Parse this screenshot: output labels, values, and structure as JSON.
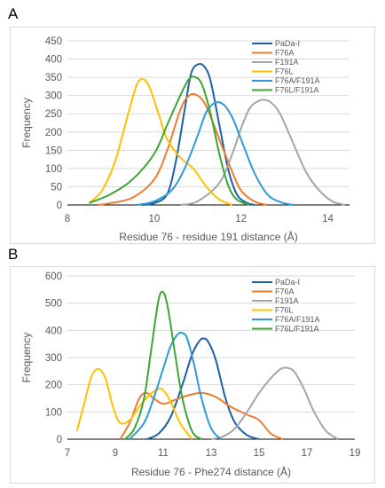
{
  "panels": [
    {
      "letter": "A"
    },
    {
      "letter": "B"
    }
  ],
  "chart_data": [
    {
      "type": "line",
      "title": "",
      "xlabel": "Residue 76 - residue 191 distance (Å)",
      "ylabel": "Frequency",
      "xlim": [
        8,
        14.5
      ],
      "ylim": [
        0,
        450
      ],
      "xticks": [
        8,
        10,
        12,
        14
      ],
      "yticks": [
        0,
        50,
        100,
        150,
        200,
        250,
        300,
        350,
        400,
        450
      ],
      "grid": "horizontal",
      "legend": "top-right",
      "series": [
        {
          "name": "PaDa-I",
          "color": "#1f5fa8",
          "x": [
            9.7,
            10.0,
            10.3,
            10.5,
            10.7,
            10.85,
            11.0,
            11.15,
            11.3,
            11.5,
            11.7,
            11.9,
            12.1,
            12.3
          ],
          "y": [
            0,
            5,
            30,
            120,
            260,
            360,
            385,
            380,
            340,
            220,
            100,
            30,
            8,
            0
          ]
        },
        {
          "name": "F76A",
          "color": "#ed7d31",
          "x": [
            8.7,
            9.0,
            9.5,
            10.0,
            10.3,
            10.6,
            10.8,
            11.0,
            11.2,
            11.5,
            11.8,
            12.0,
            12.3,
            12.6
          ],
          "y": [
            0,
            5,
            20,
            70,
            150,
            260,
            300,
            300,
            270,
            180,
            90,
            40,
            10,
            0
          ]
        },
        {
          "name": "F191A",
          "color": "#a5a5a5",
          "x": [
            10.6,
            11.0,
            11.5,
            11.8,
            12.0,
            12.2,
            12.4,
            12.55,
            12.7,
            12.9,
            13.2,
            13.5,
            13.8,
            14.1,
            14.4
          ],
          "y": [
            0,
            10,
            60,
            140,
            210,
            265,
            285,
            288,
            280,
            250,
            170,
            90,
            40,
            10,
            0
          ]
        },
        {
          "name": "F76L",
          "color": "#ffc000",
          "x": [
            8.5,
            8.8,
            9.1,
            9.4,
            9.6,
            9.75,
            9.9,
            10.1,
            10.3,
            10.6,
            10.9,
            11.2,
            11.5,
            11.8
          ],
          "y": [
            5,
            40,
            120,
            250,
            330,
            345,
            320,
            250,
            180,
            130,
            100,
            50,
            15,
            0
          ]
        },
        {
          "name": "F76A/F191A",
          "color": "#2e9bd6",
          "x": [
            9.6,
            10.0,
            10.4,
            10.7,
            11.0,
            11.2,
            11.4,
            11.6,
            11.8,
            12.0,
            12.3,
            12.6,
            12.9,
            13.2
          ],
          "y": [
            0,
            10,
            40,
            100,
            190,
            255,
            280,
            275,
            240,
            180,
            90,
            30,
            8,
            0
          ]
        },
        {
          "name": "F76L/F191A",
          "color": "#3fa535",
          "x": [
            8.5,
            9.0,
            9.5,
            10.0,
            10.3,
            10.6,
            10.8,
            10.95,
            11.1,
            11.3,
            11.5,
            11.7,
            11.9,
            12.2
          ],
          "y": [
            5,
            30,
            70,
            140,
            220,
            300,
            345,
            350,
            330,
            250,
            140,
            55,
            15,
            0
          ]
        }
      ]
    },
    {
      "type": "line",
      "title": "",
      "xlabel": "Residue 76 - Phe274 distance (Å)",
      "ylabel": "Frequency",
      "xlim": [
        7,
        19
      ],
      "ylim": [
        0,
        600
      ],
      "xticks": [
        7,
        9,
        11,
        13,
        15,
        17,
        19
      ],
      "yticks": [
        0,
        100,
        200,
        300,
        400,
        500,
        600
      ],
      "grid": "horizontal",
      "legend": "top-right",
      "series": [
        {
          "name": "PaDa-I",
          "color": "#1f5fa8",
          "x": [
            10.3,
            10.8,
            11.3,
            11.8,
            12.2,
            12.5,
            12.7,
            12.9,
            13.2,
            13.6,
            14.0,
            14.5,
            15.0
          ],
          "y": [
            0,
            20,
            80,
            200,
            310,
            360,
            370,
            355,
            290,
            150,
            60,
            15,
            0
          ]
        },
        {
          "name": "F76A",
          "color": "#ed7d31",
          "x": [
            9.2,
            9.6,
            10.0,
            10.3,
            10.6,
            11.0,
            11.5,
            12.0,
            12.6,
            13.2,
            13.8,
            14.5,
            15.0,
            15.5,
            16.0
          ],
          "y": [
            0,
            60,
            150,
            170,
            150,
            130,
            145,
            160,
            170,
            155,
            120,
            90,
            70,
            20,
            0
          ]
        },
        {
          "name": "F191A",
          "color": "#a5a5a5",
          "x": [
            13.0,
            13.5,
            14.0,
            14.5,
            15.0,
            15.5,
            15.9,
            16.2,
            16.5,
            16.9,
            17.3,
            17.8,
            18.3
          ],
          "y": [
            0,
            10,
            40,
            100,
            170,
            225,
            258,
            262,
            245,
            180,
            100,
            30,
            0
          ]
        },
        {
          "name": "F76L",
          "color": "#ffc000",
          "x": [
            7.4,
            7.7,
            8.0,
            8.3,
            8.6,
            8.9,
            9.2,
            9.6,
            10.0,
            10.4,
            10.8,
            11.0,
            11.3,
            11.7,
            12.2
          ],
          "y": [
            30,
            130,
            230,
            258,
            220,
            120,
            60,
            70,
            120,
            160,
            185,
            180,
            140,
            60,
            0
          ]
        },
        {
          "name": "F76A/F191A",
          "color": "#2e9bd6",
          "x": [
            9.6,
            10.2,
            10.6,
            11.0,
            11.3,
            11.6,
            11.8,
            12.0,
            12.3,
            12.6,
            13.0,
            13.4
          ],
          "y": [
            0,
            60,
            150,
            260,
            340,
            385,
            390,
            370,
            270,
            150,
            40,
            0
          ]
        },
        {
          "name": "F76L/F191A",
          "color": "#3fa535",
          "x": [
            9.4,
            9.8,
            10.2,
            10.5,
            10.8,
            11.0,
            11.2,
            11.5,
            11.8,
            12.2,
            12.6
          ],
          "y": [
            0,
            40,
            150,
            330,
            510,
            540,
            480,
            310,
            150,
            30,
            0
          ]
        }
      ]
    }
  ]
}
